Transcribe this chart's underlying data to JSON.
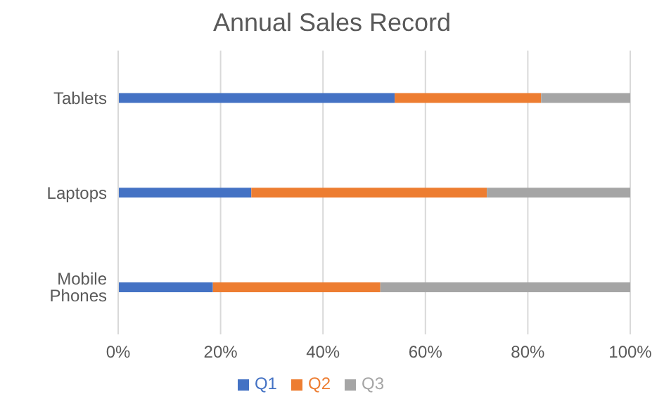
{
  "chart_data": {
    "type": "bar",
    "title": "Annual Sales Record",
    "orientation": "horizontal",
    "stacked": true,
    "categories": [
      "Tablets",
      "Laptops",
      "Mobile Phones"
    ],
    "series": [
      {
        "name": "Q1",
        "color": "#4472c4",
        "values": [
          54,
          26,
          18.5
        ]
      },
      {
        "name": "Q2",
        "color": "#ed7d31",
        "values": [
          28.6,
          46,
          32.7
        ]
      },
      {
        "name": "Q3",
        "color": "#a5a5a5",
        "values": [
          17.4,
          28,
          48.8
        ]
      }
    ],
    "xlim": [
      0,
      100
    ],
    "xticks": [
      {
        "value": 0,
        "label": "0%"
      },
      {
        "value": 20,
        "label": "20%"
      },
      {
        "value": 40,
        "label": "40%"
      },
      {
        "value": 60,
        "label": "60%"
      },
      {
        "value": 80,
        "label": "80%"
      },
      {
        "value": 100,
        "label": "100%"
      }
    ],
    "grid": "x",
    "legend": "bottom"
  }
}
